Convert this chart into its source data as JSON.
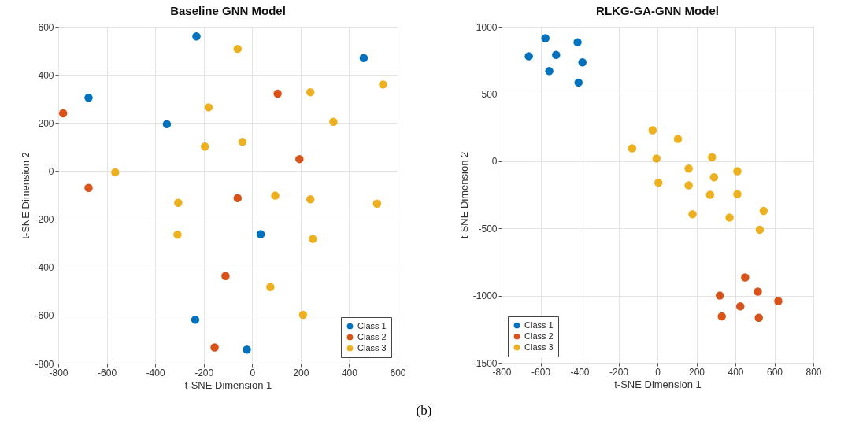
{
  "chart_data": [
    {
      "type": "scatter",
      "title": "Baseline GNN Model",
      "xlabel": "t-SNE Dimension 1",
      "ylabel": "t-SNE Dimension 2",
      "xlim": [
        -800,
        600
      ],
      "ylim": [
        -800,
        600
      ],
      "xticks": [
        -800,
        -600,
        -400,
        -200,
        0,
        200,
        400,
        600
      ],
      "yticks": [
        -800,
        -600,
        -400,
        -200,
        0,
        200,
        400,
        600
      ],
      "grid": true,
      "legend": "bottom right",
      "marker": "circle",
      "series": [
        {
          "name": "Class 1",
          "color": "#0072bd",
          "x": [
            -230,
            460,
            -675,
            -352,
            35,
            -235,
            -22
          ],
          "values": [
            560,
            470,
            305,
            195,
            -262,
            -618,
            -742
          ]
        },
        {
          "name": "Class 2",
          "color": "#d95319",
          "x": [
            -780,
            105,
            195,
            -675,
            -60,
            -110,
            -155
          ],
          "values": [
            240,
            322,
            50,
            -70,
            -112,
            -436,
            -733
          ]
        },
        {
          "name": "Class 3",
          "color": "#edb120",
          "x": [
            -60,
            540,
            240,
            -180,
            335,
            -40,
            -195,
            -565,
            -305,
            95,
            240,
            515,
            -308,
            250,
            75,
            210
          ],
          "values": [
            508,
            360,
            328,
            265,
            205,
            122,
            102,
            -5,
            -132,
            -102,
            -117,
            -135,
            -264,
            -282,
            -482,
            -597
          ]
        }
      ]
    },
    {
      "type": "scatter",
      "title": "RLKG-GA-GNN Model",
      "xlabel": "t-SNE Dimension 1",
      "ylabel": "t-SNE Dimension 2",
      "xlim": [
        -800,
        800
      ],
      "ylim": [
        -1500,
        1000
      ],
      "xticks": [
        -800,
        -600,
        -400,
        -200,
        0,
        200,
        400,
        600,
        800
      ],
      "yticks": [
        -1500,
        -1000,
        -500,
        0,
        500,
        1000
      ],
      "grid": true,
      "legend": "bottom left",
      "marker": "circle",
      "annotations": [
        "(b)"
      ],
      "series": [
        {
          "name": "Class 1",
          "color": "#0072bd",
          "x": [
            -660,
            -575,
            -520,
            -555,
            -410,
            -385,
            -405
          ],
          "values": [
            780,
            915,
            790,
            670,
            885,
            735,
            585
          ]
        },
        {
          "name": "Class 2",
          "color": "#d95319",
          "x": [
            450,
            320,
            515,
            620,
            425,
            330,
            520
          ],
          "values": [
            -865,
            -1000,
            -970,
            -1040,
            -1080,
            -1155,
            -1165
          ]
        },
        {
          "name": "Class 3",
          "color": "#edb120",
          "x": [
            -130,
            -25,
            105,
            -5,
            5,
            160,
            160,
            280,
            290,
            410,
            270,
            410,
            180,
            370,
            545,
            525
          ],
          "values": [
            95,
            230,
            165,
            20,
            -160,
            -55,
            -180,
            30,
            -120,
            -75,
            -250,
            -245,
            -395,
            -420,
            -370,
            -510
          ]
        }
      ]
    }
  ]
}
